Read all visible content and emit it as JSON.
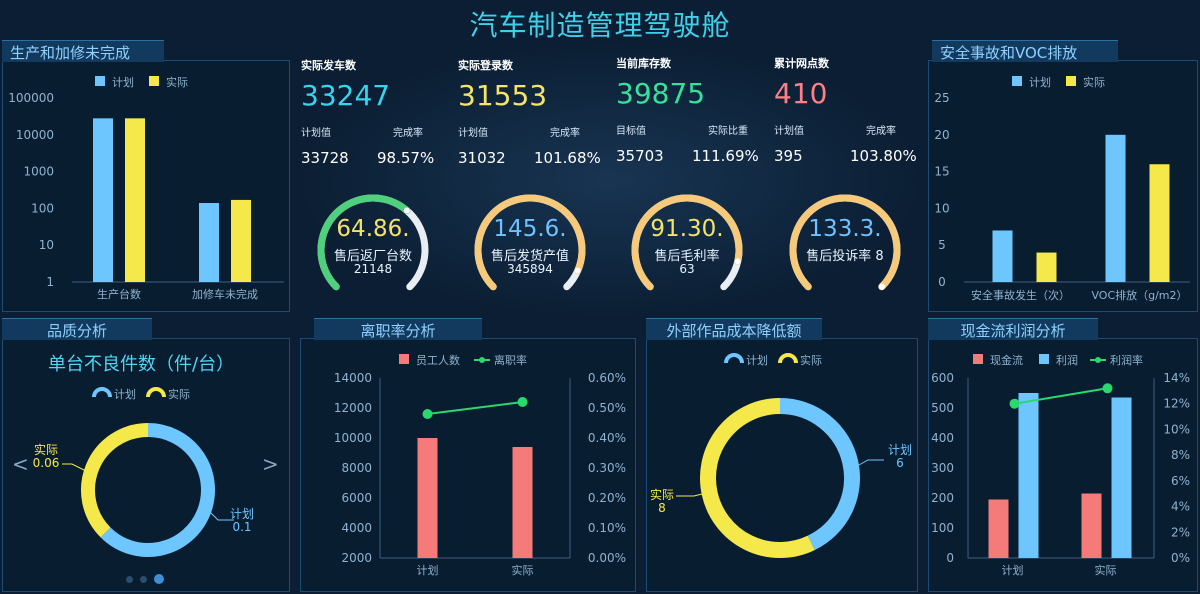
{
  "title": "汽车制造管理驾驶舱",
  "kpis": [
    {
      "label": "实际发车数",
      "value": "33247",
      "color": "#37d3f0",
      "sub1_label": "计划值",
      "sub2_label": "完成率",
      "sub1": "33728",
      "sub2": "98.57%"
    },
    {
      "label": "实际登录数",
      "value": "31553",
      "color": "#f4e46a",
      "sub1_label": "计划值",
      "sub2_label": "完成率",
      "sub1": "31032",
      "sub2": "101.68%"
    },
    {
      "label": "当前库存数",
      "value": "39875",
      "color": "#36e19a",
      "sub1_label": "目标值",
      "sub2_label": "实际比重",
      "sub1": "35703",
      "sub2": "111.69%"
    },
    {
      "label": "累计网点数",
      "value": "410",
      "color": "#ff7f86",
      "sub1_label": "计划值",
      "sub2_label": "完成率",
      "sub1": "395",
      "sub2": "103.80%"
    }
  ],
  "gauges": [
    {
      "value": "64.86.",
      "label": "售后返厂台数",
      "num": "21148",
      "value_color": "#f3e36a",
      "ring": "#4fd07c",
      "fraction": 0.65
    },
    {
      "value": "145.6.",
      "label": "售后发货产值",
      "num": "345894",
      "value_color": "#6ec2ff",
      "ring": "#f7c97a",
      "fraction": 0.92
    },
    {
      "value": "91.30.",
      "label": "售后毛利率",
      "num": "63",
      "value_color": "#f3e36a",
      "ring": "#f7c97a",
      "fraction": 0.88
    },
    {
      "value": "133.3.",
      "label": "售后投诉率 8",
      "num": "",
      "value_color": "#6ec2ff",
      "ring": "#f7c97a",
      "fraction": 1.0
    }
  ],
  "panels": {
    "production": "生产和加修未完成",
    "safety": "安全事故和VOC排放",
    "quality": "品质分析",
    "turnover": "离职率分析",
    "cost": "外部作品成本降低额",
    "cashflow": "现金流利润分析"
  },
  "quality_title": "单台不良件数（件/台）",
  "quality_nav": {
    "prev": "<",
    "next": ">"
  },
  "colors": {
    "plan": "#6ec6ff",
    "actual": "#f5e84a",
    "staff": "#f57a7a",
    "rate": "#2ad86e",
    "bg": "#0b1e33"
  },
  "chart_data": [
    {
      "type": "bar",
      "id": "production",
      "scale": "log",
      "categories": [
        "生产台数",
        "加修车未完成"
      ],
      "series": [
        {
          "name": "计划",
          "values": [
            28000,
            140
          ]
        },
        {
          "name": "实际",
          "values": [
            28000,
            170
          ]
        }
      ],
      "yticks": [
        "100000",
        "10000",
        "1000",
        "100",
        "10",
        "1"
      ],
      "ylim": [
        1,
        100000
      ],
      "legend": "top"
    },
    {
      "type": "bar",
      "id": "safety",
      "categories": [
        "安全事故发生（次）",
        "VOC排放（g/m2）"
      ],
      "series": [
        {
          "name": "计划",
          "values": [
            7,
            20
          ]
        },
        {
          "name": "实际",
          "values": [
            4,
            16
          ]
        }
      ],
      "yticks": [
        "0",
        "5",
        "10",
        "15",
        "20",
        "25"
      ],
      "ylim": [
        0,
        25
      ],
      "legend": "top"
    },
    {
      "type": "pie",
      "id": "quality",
      "slices": [
        {
          "name": "计划",
          "label": "计划",
          "value": 0.1,
          "text": "0.1"
        },
        {
          "name": "实际",
          "label": "实际",
          "value": 0.06,
          "text": "0.06"
        }
      ],
      "legend": "top"
    },
    {
      "type": "bar",
      "id": "turnover",
      "categories": [
        "计划",
        "实际"
      ],
      "series": [
        {
          "name": "员工人数",
          "type": "bar",
          "values": [
            10000,
            9400
          ]
        },
        {
          "name": "离职率",
          "type": "line",
          "values": [
            0.48,
            0.52
          ]
        }
      ],
      "yticks_left": [
        "2000",
        "4000",
        "6000",
        "8000",
        "10000",
        "12000",
        "14000"
      ],
      "ylim_left": [
        2000,
        14000
      ],
      "yticks_right": [
        "0.00%",
        "0.10%",
        "0.20%",
        "0.30%",
        "0.40%",
        "0.50%",
        "0.60%"
      ],
      "ylim_right": [
        0,
        0.6
      ],
      "legend": "top"
    },
    {
      "type": "pie",
      "id": "cost",
      "slices": [
        {
          "name": "计划",
          "label": "计划",
          "value": 6,
          "text": "6"
        },
        {
          "name": "实际",
          "label": "实际",
          "value": 8,
          "text": "8"
        }
      ],
      "legend": "top"
    },
    {
      "type": "bar",
      "id": "cashflow",
      "categories": [
        "计划",
        "实际"
      ],
      "series": [
        {
          "name": "现金流",
          "type": "bar",
          "values": [
            195,
            215
          ]
        },
        {
          "name": "利润",
          "type": "bar",
          "values": [
            550,
            535
          ]
        },
        {
          "name": "利润率",
          "type": "line",
          "values": [
            12,
            13.2
          ]
        }
      ],
      "yticks_left": [
        "0",
        "100",
        "200",
        "300",
        "400",
        "500",
        "600"
      ],
      "ylim_left": [
        0,
        600
      ],
      "yticks_right": [
        "0%",
        "2%",
        "4%",
        "6%",
        "8%",
        "10%",
        "12%",
        "14%"
      ],
      "ylim_right": [
        0,
        14
      ],
      "legend": "top"
    }
  ]
}
